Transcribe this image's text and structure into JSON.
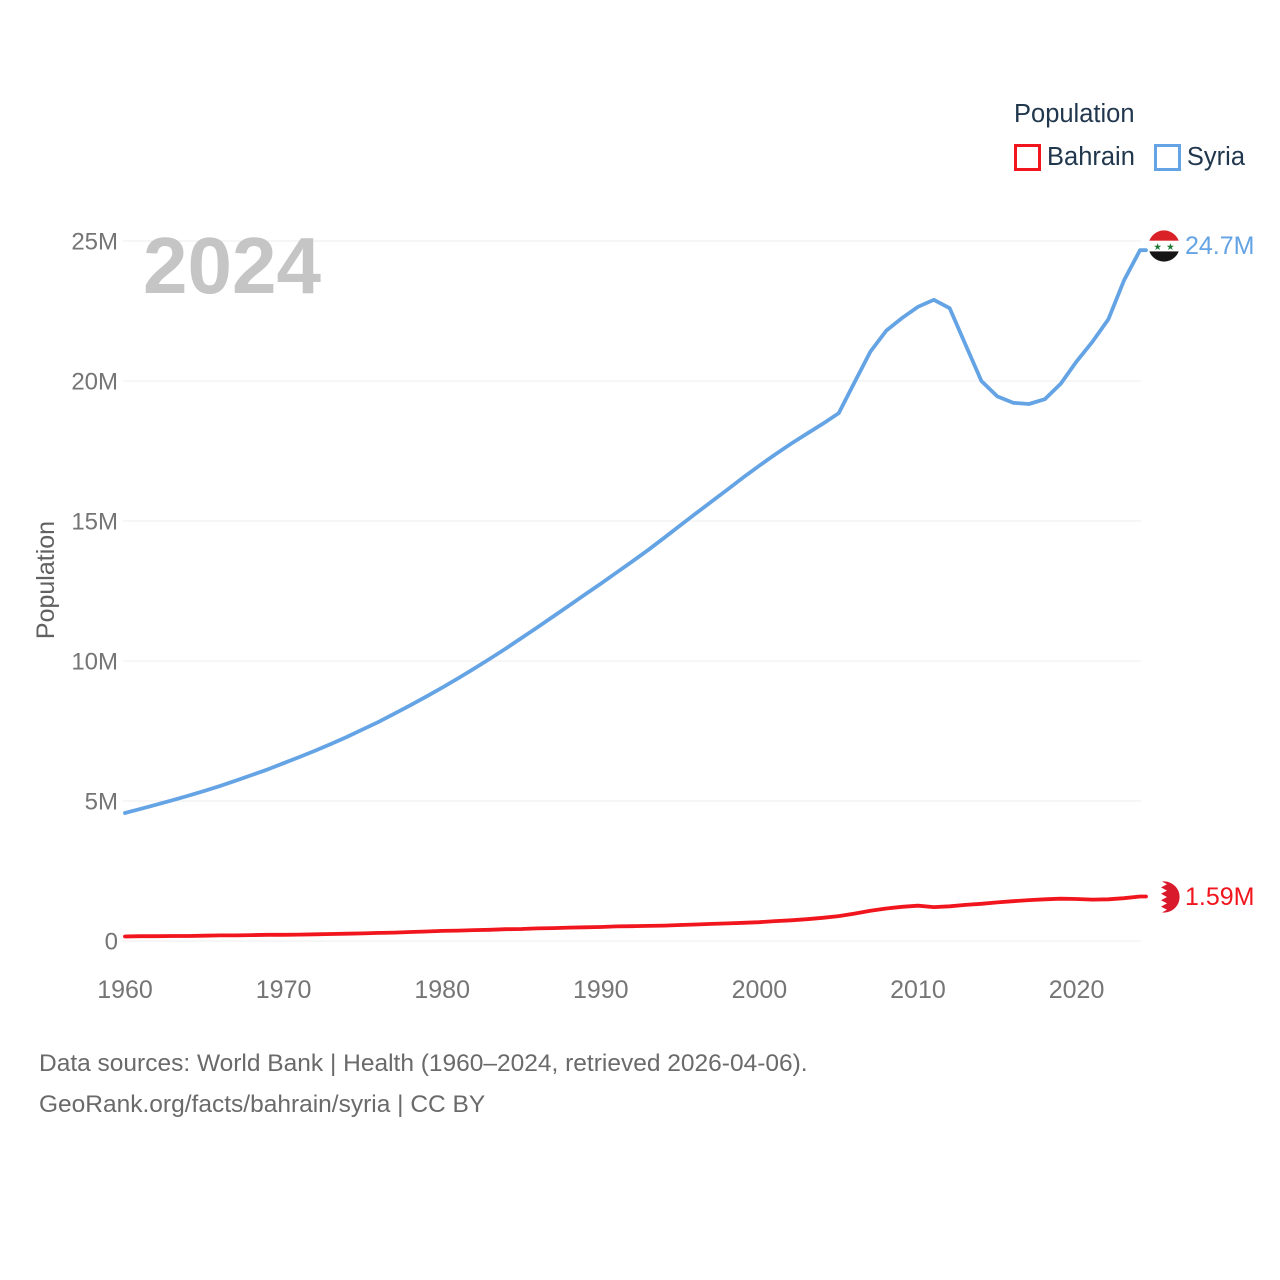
{
  "watermark": "2024",
  "legend": {
    "title": "Population"
  },
  "footer": {
    "line1": "Data sources: World Bank | Health (1960–2024, retrieved 2026-04-06).",
    "line2": "GeoRank.org/facts/bahrain/syria | CC BY"
  },
  "colors": {
    "background": "#ffffff",
    "gridline": "#ededed",
    "tick_text": "#757575",
    "legend_text": "#21374d",
    "watermark": "#c5c5c5",
    "footer_text": "#6a6a6a"
  },
  "chart_data": {
    "type": "line",
    "title": "Population",
    "xlabel": "",
    "ylabel": "Population",
    "x_range": [
      1960,
      2024
    ],
    "ylim": [
      0,
      26.2
    ],
    "grid": "horizontal",
    "legend_position": "top-right",
    "x": [
      1960,
      1961,
      1962,
      1963,
      1964,
      1965,
      1966,
      1967,
      1968,
      1969,
      1970,
      1971,
      1972,
      1973,
      1974,
      1975,
      1976,
      1977,
      1978,
      1979,
      1980,
      1981,
      1982,
      1983,
      1984,
      1985,
      1986,
      1987,
      1988,
      1989,
      1990,
      1991,
      1992,
      1993,
      1994,
      1995,
      1996,
      1997,
      1998,
      1999,
      2000,
      2001,
      2002,
      2003,
      2004,
      2005,
      2006,
      2007,
      2008,
      2009,
      2010,
      2011,
      2012,
      2013,
      2014,
      2015,
      2016,
      2017,
      2018,
      2019,
      2020,
      2021,
      2022,
      2023,
      2024
    ],
    "y_ticks": [
      {
        "value": 0,
        "label": "0"
      },
      {
        "value": 5,
        "label": "5M"
      },
      {
        "value": 10,
        "label": "10M"
      },
      {
        "value": 15,
        "label": "15M"
      },
      {
        "value": 20,
        "label": "20M"
      },
      {
        "value": 25,
        "label": "25M"
      }
    ],
    "x_ticks": [
      {
        "value": 1960,
        "label": "1960"
      },
      {
        "value": 1970,
        "label": "1970"
      },
      {
        "value": 1980,
        "label": "1980"
      },
      {
        "value": 1990,
        "label": "1990"
      },
      {
        "value": 2000,
        "label": "2000"
      },
      {
        "value": 2010,
        "label": "2010"
      },
      {
        "value": 2020,
        "label": "2020"
      }
    ],
    "unit": "millions",
    "series": [
      {
        "name": "Bahrain",
        "color": "#f1151d",
        "flag_icon": "bahrain-flag-icon",
        "end_label": "1.59M",
        "values": [
          0.16,
          0.17,
          0.17,
          0.18,
          0.18,
          0.19,
          0.2,
          0.2,
          0.21,
          0.22,
          0.22,
          0.23,
          0.24,
          0.25,
          0.26,
          0.27,
          0.29,
          0.3,
          0.32,
          0.34,
          0.36,
          0.37,
          0.39,
          0.4,
          0.42,
          0.43,
          0.45,
          0.46,
          0.48,
          0.49,
          0.5,
          0.52,
          0.53,
          0.54,
          0.55,
          0.57,
          0.59,
          0.61,
          0.63,
          0.65,
          0.67,
          0.71,
          0.74,
          0.78,
          0.83,
          0.89,
          0.98,
          1.08,
          1.16,
          1.22,
          1.26,
          1.21,
          1.24,
          1.29,
          1.33,
          1.38,
          1.42,
          1.46,
          1.49,
          1.51,
          1.5,
          1.48,
          1.49,
          1.53,
          1.59
        ]
      },
      {
        "name": "Syria",
        "color": "#64a3e4",
        "flag_icon": "syria-flag-icon",
        "end_label": "24.7M",
        "values": [
          4.57,
          4.72,
          4.87,
          5.03,
          5.19,
          5.36,
          5.54,
          5.73,
          5.93,
          6.13,
          6.35,
          6.57,
          6.8,
          7.04,
          7.29,
          7.56,
          7.83,
          8.12,
          8.42,
          8.73,
          9.05,
          9.38,
          9.72,
          10.08,
          10.44,
          10.82,
          11.2,
          11.59,
          11.98,
          12.37,
          12.76,
          13.16,
          13.56,
          13.97,
          14.4,
          14.84,
          15.27,
          15.7,
          16.13,
          16.56,
          16.98,
          17.38,
          17.76,
          18.12,
          18.47,
          18.85,
          19.95,
          21.05,
          21.8,
          22.25,
          22.65,
          22.9,
          22.6,
          21.3,
          20.0,
          19.45,
          19.22,
          19.18,
          19.35,
          19.9,
          20.7,
          21.4,
          22.2,
          23.6,
          24.67
        ]
      }
    ]
  }
}
